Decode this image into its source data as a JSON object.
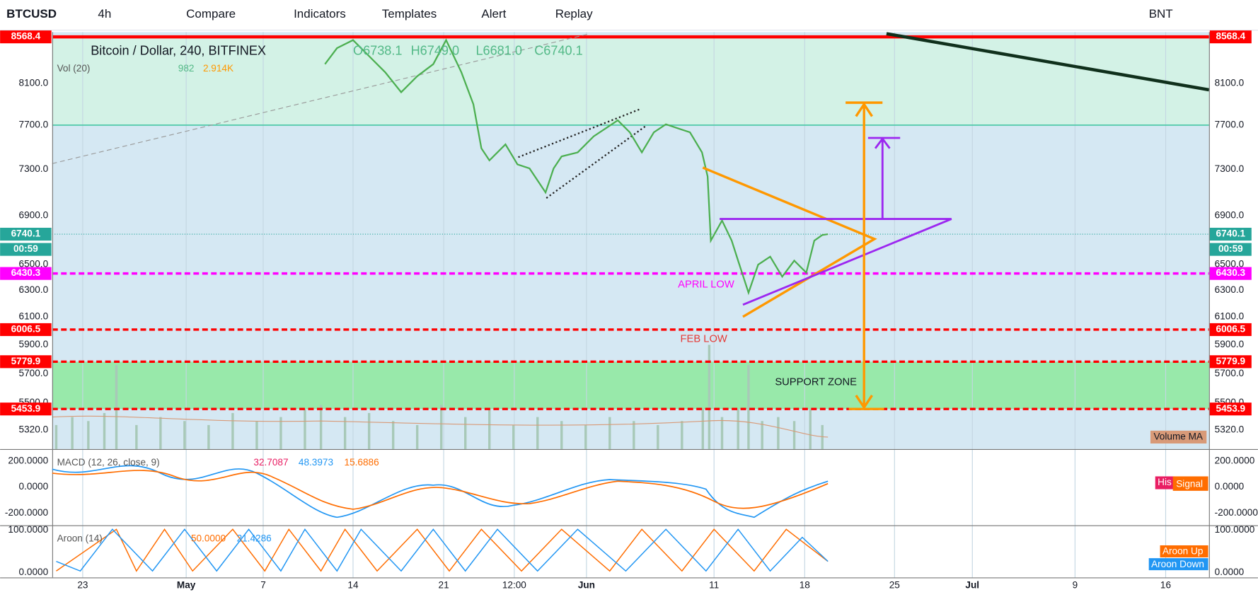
{
  "toolbar": {
    "symbol": "BTCUSD",
    "interval": "4h",
    "items": [
      "Compare",
      "Indicators",
      "Templates",
      "Alert",
      "Replay"
    ],
    "currency": "BNT"
  },
  "legend": {
    "title": "Bitcoin / Dollar, 240, BITFINEX",
    "ohlc": [
      "O6738.1",
      "H6749.0",
      "L6681.0",
      "C6740.1"
    ],
    "volume": "Vol (20)",
    "volume_values": [
      "982",
      "2.914K"
    ]
  },
  "price_axis": {
    "ticks": [
      "8100.0",
      "7700.0",
      "7300.0",
      "6900.0",
      "6500.0",
      "6300.0",
      "6100.0",
      "5900.0",
      "5700.0",
      "5500.0",
      "5320.0"
    ],
    "tags": [
      "8568.4",
      "6740.1",
      "00:59",
      "6430.3",
      "6006.5",
      "5779.9",
      "5453.9"
    ]
  },
  "annotations": [
    "APRIL LOW",
    "FEB LOW",
    "SUPPORT ZONE"
  ],
  "volume_tag": "Volume MA",
  "time_axis": [
    "23",
    "May",
    "7",
    "14",
    "21",
    "12:00",
    "Jun",
    "11",
    "18",
    "25",
    "Jul",
    "9",
    "16"
  ],
  "macd": {
    "label": "MACD (12, 26, close, 9)",
    "values": [
      "32.7087",
      "48.3973",
      "15.6886"
    ],
    "ticks": [
      "200.0000",
      "0.0000",
      "-200.0000"
    ],
    "tags": [
      "His",
      "Signal"
    ]
  },
  "aroon": {
    "label": "Aroon (14)",
    "values": [
      "50.0000",
      "21.4286"
    ],
    "ticks": [
      "100.0000",
      "0.0000"
    ],
    "tags": [
      "Aroon Up",
      "Aroon Down"
    ]
  }
}
